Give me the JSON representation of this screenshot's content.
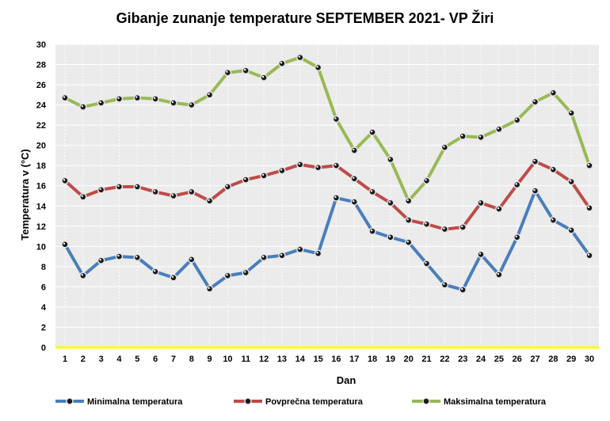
{
  "chart_data": {
    "type": "line",
    "title": "Gibanje  zunanje  temperature SEPTEMBER  2021- VP Žiri",
    "xlabel": "Dan",
    "ylabel": "Temperatura v (°C)",
    "ylim": [
      0,
      30
    ],
    "yticks": [
      0,
      2,
      4,
      6,
      8,
      10,
      12,
      14,
      16,
      18,
      20,
      22,
      24,
      26,
      28,
      30
    ],
    "grid": true,
    "legend_position": "bottom",
    "colors": {
      "plot_bg": "#ebebeb",
      "grid": "#ffffff",
      "baseline": "#ffff00"
    },
    "categories": [
      "1",
      "2",
      "3",
      "4",
      "5",
      "6",
      "7",
      "8",
      "9",
      "10",
      "11",
      "12",
      "13",
      "14",
      "15",
      "16",
      "17",
      "18",
      "19",
      "20",
      "21",
      "22",
      "23",
      "24",
      "25",
      "26",
      "27",
      "28",
      "29",
      "30"
    ],
    "series": [
      {
        "name": "Minimalna temperatura",
        "color": "#4a7ebb",
        "values": [
          10.2,
          7.1,
          8.6,
          9.0,
          8.9,
          7.5,
          6.9,
          8.7,
          5.8,
          7.1,
          7.4,
          8.9,
          9.1,
          9.7,
          9.3,
          14.8,
          14.4,
          11.5,
          10.9,
          10.4,
          8.3,
          6.2,
          5.7,
          9.2,
          7.2,
          10.9,
          15.5,
          12.6,
          11.6,
          9.1
        ]
      },
      {
        "name": "Povprečna temperatura",
        "color": "#be4b48",
        "values": [
          16.5,
          14.9,
          15.6,
          15.9,
          15.9,
          15.4,
          15.0,
          15.4,
          14.5,
          15.9,
          16.6,
          17.0,
          17.5,
          18.1,
          17.8,
          18.0,
          16.7,
          15.4,
          14.3,
          12.6,
          12.2,
          11.7,
          11.9,
          14.3,
          13.7,
          16.1,
          18.4,
          17.6,
          16.4,
          13.8
        ]
      },
      {
        "name": "Maksimalna temperatura",
        "color": "#98b954",
        "values": [
          24.7,
          23.8,
          24.2,
          24.6,
          24.7,
          24.6,
          24.2,
          24.0,
          25.0,
          27.2,
          27.4,
          26.7,
          28.1,
          28.7,
          27.7,
          22.6,
          19.5,
          21.3,
          18.6,
          14.5,
          16.5,
          19.8,
          20.9,
          20.8,
          21.6,
          22.5,
          24.3,
          25.2,
          23.2,
          18.0
        ]
      }
    ]
  }
}
